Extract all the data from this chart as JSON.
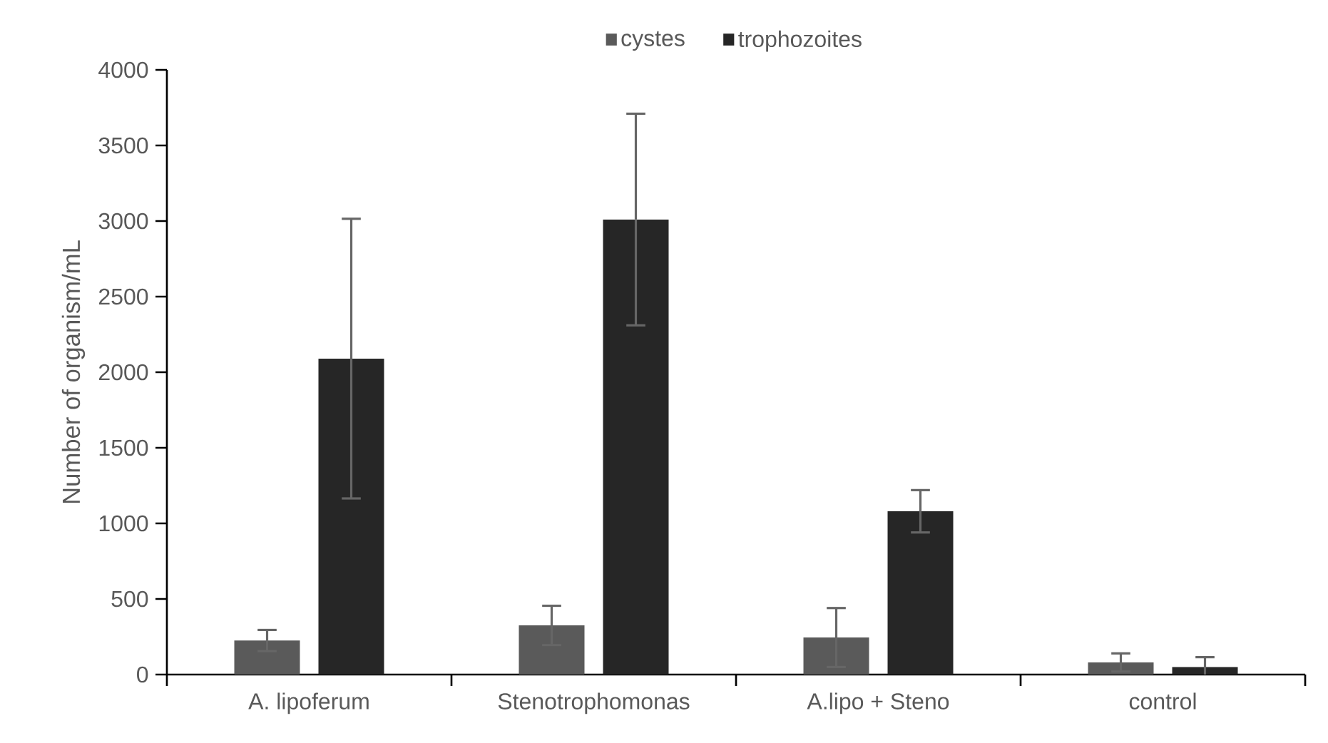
{
  "chart_data": {
    "type": "bar",
    "ylabel": "Number of organism/mL",
    "categories": [
      "A. lipoferum",
      "Stenotrophomonas",
      "A.lipo + Steno",
      "control"
    ],
    "series": [
      {
        "name": "cystes",
        "color": "#5a5a5a",
        "values": [
          225,
          325,
          245,
          80
        ],
        "errors": [
          70,
          130,
          195,
          60
        ]
      },
      {
        "name": "trophozoites",
        "color": "#262626",
        "values": [
          2090,
          3010,
          1080,
          50
        ],
        "errors": [
          925,
          700,
          140,
          65
        ]
      }
    ],
    "ylim": [
      0,
      4000
    ],
    "yticks": [
      0,
      500,
      1000,
      1500,
      2000,
      2500,
      3000,
      3500,
      4000
    ],
    "legend": "top"
  }
}
